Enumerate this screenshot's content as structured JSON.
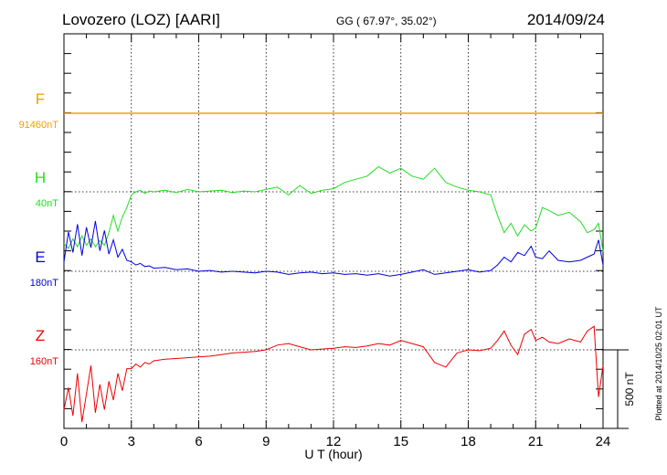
{
  "header": {
    "station": "Lovozero (LOZ)  [AARI]",
    "coords": "GG ( 67.97°,  35.02°)",
    "date": "2014/09/24"
  },
  "footer": {
    "plotted": "Plotted at 2014/10/25 02:01 UT",
    "scale": "500 nT"
  },
  "chart_data": {
    "type": "line",
    "title": "",
    "xlabel": "U T (hour)",
    "xlim": [
      0,
      24
    ],
    "xticks": [
      "0",
      "3",
      "6",
      "9",
      "12",
      "15",
      "18",
      "21",
      "24"
    ],
    "scale_bar_nT": 500,
    "series": [
      {
        "name": "F",
        "baseline": "91460nT",
        "color": "#f0a000",
        "x": [
          0,
          24
        ],
        "y": [
          0,
          0
        ]
      },
      {
        "name": "H",
        "baseline": "40nT",
        "color": "#22dd22",
        "x": [
          0,
          0.2,
          0.4,
          0.6,
          0.8,
          1.0,
          1.2,
          1.4,
          1.6,
          1.8,
          2.0,
          2.2,
          2.4,
          2.6,
          2.8,
          3.0,
          3.2,
          3.4,
          3.6,
          3.8,
          4.0,
          4.5,
          5.0,
          5.5,
          6.0,
          6.5,
          7.0,
          7.5,
          8.0,
          8.5,
          9.0,
          9.5,
          10.0,
          10.5,
          11.0,
          11.5,
          12.0,
          12.5,
          13.0,
          13.5,
          14.0,
          14.5,
          15.0,
          15.5,
          16.0,
          16.5,
          17.0,
          17.5,
          18.0,
          18.5,
          19.0,
          19.3,
          19.6,
          19.9,
          20.2,
          20.5,
          20.8,
          21.0,
          21.3,
          21.6,
          22.0,
          22.5,
          23.0,
          23.3,
          23.6,
          23.8,
          24.0
        ],
        "y": [
          -330,
          -360,
          -300,
          -350,
          -280,
          -340,
          -300,
          -350,
          -310,
          -340,
          -260,
          -150,
          -250,
          -160,
          -100,
          -20,
          0,
          10,
          -10,
          5,
          0,
          10,
          -5,
          15,
          0,
          5,
          10,
          -5,
          5,
          0,
          15,
          30,
          -20,
          40,
          -10,
          10,
          20,
          60,
          80,
          100,
          160,
          120,
          150,
          100,
          80,
          150,
          60,
          30,
          10,
          0,
          -20,
          -150,
          -260,
          -200,
          -280,
          -210,
          -250,
          -230,
          -100,
          -120,
          -150,
          -130,
          -190,
          -260,
          -240,
          -200,
          -380
        ]
      },
      {
        "name": "E",
        "baseline": "180nT",
        "color": "#0000dd",
        "x": [
          0,
          0.2,
          0.4,
          0.6,
          0.8,
          1.0,
          1.2,
          1.4,
          1.6,
          1.8,
          2.0,
          2.2,
          2.4,
          2.6,
          2.8,
          3.0,
          3.2,
          3.4,
          3.6,
          3.8,
          4.0,
          4.5,
          5.0,
          5.5,
          6.0,
          6.5,
          7.0,
          7.5,
          8.0,
          8.5,
          9.0,
          9.5,
          10.0,
          10.5,
          11.0,
          11.5,
          12.0,
          12.5,
          13.0,
          13.5,
          14.0,
          14.5,
          15.0,
          15.5,
          16.0,
          16.5,
          17.0,
          17.5,
          18.0,
          18.5,
          19.0,
          19.3,
          19.6,
          19.9,
          20.2,
          20.5,
          20.8,
          21.0,
          21.3,
          21.6,
          22.0,
          22.5,
          23.0,
          23.3,
          23.6,
          23.8,
          24.0
        ],
        "y": [
          60,
          250,
          120,
          300,
          100,
          280,
          150,
          320,
          130,
          260,
          110,
          200,
          90,
          140,
          70,
          60,
          40,
          50,
          30,
          35,
          20,
          25,
          10,
          15,
          0,
          5,
          -5,
          0,
          -5,
          -10,
          0,
          -5,
          -20,
          -10,
          -5,
          -15,
          -10,
          -20,
          -15,
          -25,
          -15,
          -30,
          -20,
          -5,
          10,
          -20,
          -10,
          0,
          10,
          -5,
          5,
          40,
          90,
          60,
          120,
          100,
          160,
          90,
          80,
          130,
          70,
          60,
          70,
          90,
          110,
          200,
          40
        ]
      },
      {
        "name": "Z",
        "baseline": "160nT",
        "color": "#ee0000",
        "x": [
          0,
          0.2,
          0.4,
          0.6,
          0.8,
          1.0,
          1.2,
          1.4,
          1.6,
          1.8,
          2.0,
          2.2,
          2.4,
          2.6,
          2.8,
          3.0,
          3.2,
          3.4,
          3.6,
          3.8,
          4.0,
          4.5,
          5.0,
          5.5,
          6.0,
          6.5,
          7.0,
          7.5,
          8.0,
          8.5,
          9.0,
          9.5,
          10.0,
          10.5,
          11.0,
          11.5,
          12.0,
          12.5,
          13.0,
          13.5,
          14.0,
          14.5,
          15.0,
          15.5,
          16.0,
          16.5,
          17.0,
          17.5,
          18.0,
          18.5,
          19.0,
          19.3,
          19.6,
          19.9,
          20.2,
          20.5,
          20.8,
          21.0,
          21.3,
          21.6,
          22.0,
          22.5,
          23.0,
          23.3,
          23.6,
          23.8,
          24.0
        ],
        "y": [
          -380,
          -240,
          -420,
          -150,
          -460,
          -280,
          -100,
          -400,
          -220,
          -380,
          -200,
          -320,
          -150,
          -260,
          -120,
          -120,
          -90,
          -110,
          -80,
          -90,
          -70,
          -60,
          -55,
          -50,
          -45,
          -40,
          -30,
          -20,
          -15,
          -10,
          0,
          30,
          40,
          20,
          0,
          5,
          10,
          20,
          15,
          25,
          40,
          30,
          60,
          40,
          20,
          -80,
          -110,
          -20,
          0,
          -5,
          10,
          60,
          120,
          30,
          -30,
          100,
          130,
          60,
          80,
          50,
          40,
          70,
          50,
          120,
          150,
          -300,
          -100
        ]
      }
    ]
  }
}
